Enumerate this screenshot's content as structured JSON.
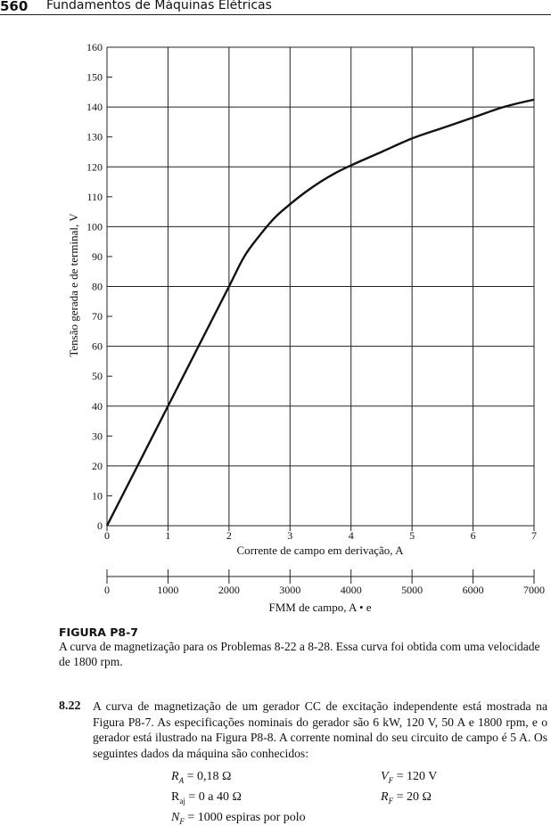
{
  "header": {
    "page_number": "560",
    "book_title": "Fundamentos de Máquinas Elétricas"
  },
  "chart_data": {
    "type": "line",
    "ylabel": "Tensão gerada e de terminal, V",
    "xlabel": "Corrente de campo em derivação, A",
    "secondary_xlabel": "FMM de campo, A • e",
    "xlim": [
      0,
      7
    ],
    "ylim": [
      0,
      160
    ],
    "x_ticks": [
      "0",
      "1",
      "2",
      "3",
      "4",
      "5",
      "6",
      "7"
    ],
    "y_ticks": [
      "0",
      "10",
      "20",
      "30",
      "40",
      "50",
      "60",
      "70",
      "80",
      "90",
      "100",
      "110",
      "120",
      "130",
      "140",
      "150",
      "160"
    ],
    "secondary_ticks": [
      "0",
      "1000",
      "2000",
      "3000",
      "4000",
      "5000",
      "6000",
      "7000"
    ],
    "grid": true,
    "series": [
      {
        "x": [
          0,
          0.5,
          1.0,
          1.5,
          2.0,
          2.25,
          2.5,
          2.75,
          3.0,
          3.25,
          3.5,
          3.75,
          4.0,
          4.5,
          5.0,
          5.5,
          6.0,
          6.5,
          7.0
        ],
        "y": [
          0,
          20,
          40,
          60,
          80,
          90,
          97,
          103,
          107.5,
          111.5,
          115,
          118,
          120.5,
          125,
          129.5,
          133,
          136.5,
          140,
          142.5
        ]
      }
    ]
  },
  "caption": {
    "label": "FIGURA P8-7",
    "text": "A curva de magnetização para os Problemas 8-22 a 8-28. Essa curva foi obtida com uma velocidade de 1800 rpm."
  },
  "problem": {
    "number": "8.22",
    "text": "A curva de magnetização de um gerador CC de excitação independente está mostrada na Figura P8-7. As especificações nominais do gerador são 6 kW, 120 V, 50 A e 1800 rpm, e o gerador está ilustrado na Figura P8-8. A corrente nominal do seu circuito de campo é 5 A. Os seguintes dados da máquina são conhecidos:"
  },
  "equations": {
    "ra": "= 0,18 Ω",
    "vf": "= 120 V",
    "raj_prefix": "R",
    "raj_sub": "aj",
    "raj": "= 0 a 40 Ω",
    "rf": "= 20 Ω",
    "nf": "= 1000 espiras por polo"
  }
}
